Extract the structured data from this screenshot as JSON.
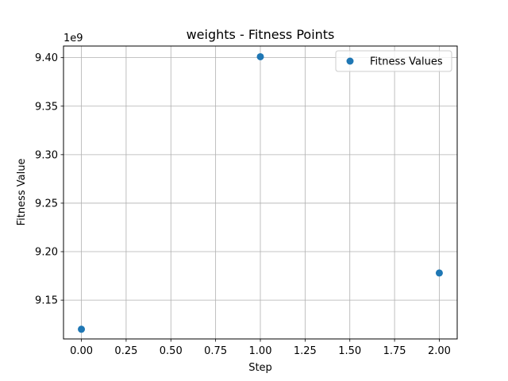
{
  "chart_data": {
    "type": "scatter",
    "title": "weights - Fitness Points",
    "xlabel": "Step",
    "ylabel": "Fitness Value",
    "y_offset_label": "1e9",
    "xlim": [
      -0.1,
      2.1
    ],
    "ylim": [
      9110000000,
      9412000000
    ],
    "x_ticks": [
      0.0,
      0.25,
      0.5,
      0.75,
      1.0,
      1.25,
      1.5,
      1.75,
      2.0
    ],
    "x_tick_labels": [
      "0.00",
      "0.25",
      "0.50",
      "0.75",
      "1.00",
      "1.25",
      "1.50",
      "1.75",
      "2.00"
    ],
    "y_ticks": [
      9150000000,
      9200000000,
      9250000000,
      9300000000,
      9350000000,
      9400000000
    ],
    "y_tick_labels": [
      "9.15",
      "9.20",
      "9.25",
      "9.30",
      "9.35",
      "9.40"
    ],
    "grid": true,
    "legend_position": "top-right",
    "series": [
      {
        "name": "Fitness Values",
        "color": "#1f77b4",
        "x": [
          0,
          1,
          2
        ],
        "y": [
          9120000000,
          9401000000,
          9178000000
        ]
      }
    ]
  }
}
